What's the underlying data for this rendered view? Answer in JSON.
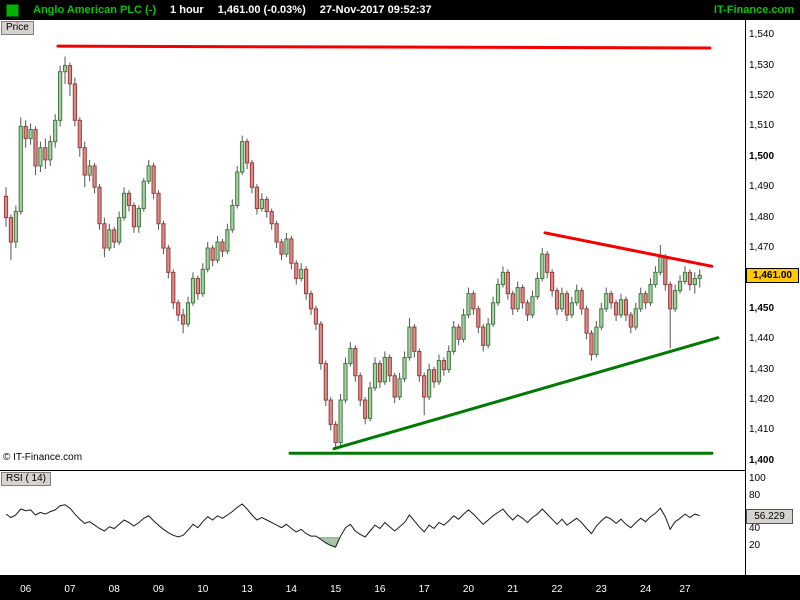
{
  "topbar": {
    "symbol": "Anglo American PLC (-)",
    "timeframe": "1 hour",
    "price_change": "1,461.00 (-0.03%)",
    "datetime": "27-Nov-2017 09:52:37",
    "brand": "IT-Finance.com"
  },
  "price_pane": {
    "label": "Price",
    "copyright": "© IT-Finance.com",
    "current_price_label": "1,461.00"
  },
  "rsi_pane": {
    "label": "RSI ( 14)",
    "value_label": "56.229"
  },
  "colors": {
    "up_fill": "#a9cfa4",
    "up_stroke": "#3f7a3f",
    "down_fill": "#d58e8c",
    "down_stroke": "#9e3a38",
    "wick": "#555555",
    "trend_red": "#f40000",
    "trend_green": "#007a00",
    "rsi_line": "#1a1a1a",
    "oversold_fill": "#a8c4a8",
    "accent_green": "#00c800",
    "price_flag_bg": "#ffc800"
  },
  "time_axis": {
    "labels": [
      "06",
      "07",
      "08",
      "09",
      "10",
      "13",
      "14",
      "15",
      "16",
      "17",
      "20",
      "21",
      "22",
      "23",
      "24",
      "27"
    ],
    "sessions": [
      9,
      9,
      9,
      9,
      9,
      9,
      9,
      9,
      9,
      9,
      9,
      9,
      9,
      9,
      9,
      7
    ]
  },
  "chart_data": [
    {
      "type": "candlestick",
      "title": "Anglo American PLC, 1 hour, 27-Nov-2017",
      "ylabel": "Price",
      "ylim": [
        1397,
        1545
      ],
      "last_price": 1461.0,
      "yticks": [
        {
          "v": 1540,
          "label": "1,540",
          "bold": false
        },
        {
          "v": 1530,
          "label": "1,530",
          "bold": false
        },
        {
          "v": 1520,
          "label": "1,520",
          "bold": false
        },
        {
          "v": 1510,
          "label": "1,510",
          "bold": false
        },
        {
          "v": 1500,
          "label": "1,500",
          "bold": true
        },
        {
          "v": 1490,
          "label": "1,490",
          "bold": false
        },
        {
          "v": 1480,
          "label": "1,480",
          "bold": false
        },
        {
          "v": 1470,
          "label": "1,470",
          "bold": false
        },
        {
          "v": 1450,
          "label": "1,450",
          "bold": true
        },
        {
          "v": 1440,
          "label": "1,440",
          "bold": false
        },
        {
          "v": 1430,
          "label": "1,430",
          "bold": false
        },
        {
          "v": 1420,
          "label": "1,420",
          "bold": false
        },
        {
          "v": 1410,
          "label": "1,410",
          "bold": false
        },
        {
          "v": 1400,
          "label": "1,400",
          "bold": true
        }
      ],
      "overlays": [
        {
          "name": "resistance-line",
          "color": "#f40000",
          "width": 3,
          "x1": 58,
          "p1": 1536.4,
          "x2": 710,
          "p2": 1535.8
        },
        {
          "name": "descending-trendline",
          "color": "#f40000",
          "width": 3,
          "x1": 545,
          "p1": 1475,
          "x2": 712,
          "p2": 1464
        },
        {
          "name": "ascending-trendline",
          "color": "#007a00",
          "width": 3,
          "x1": 334,
          "p1": 1404,
          "x2": 718,
          "p2": 1440.5
        },
        {
          "name": "support-line",
          "color": "#007a00",
          "width": 3,
          "x1": 290,
          "p1": 1402.5,
          "x2": 712,
          "p2": 1402.5
        }
      ],
      "candles": [
        [
          1487,
          1490,
          1477,
          1480
        ],
        [
          1480,
          1481,
          1466,
          1472
        ],
        [
          1472,
          1484,
          1470,
          1482
        ],
        [
          1482,
          1513,
          1481,
          1510
        ],
        [
          1510,
          1512,
          1503,
          1506
        ],
        [
          1506,
          1511,
          1504,
          1509
        ],
        [
          1509,
          1510,
          1494,
          1497
        ],
        [
          1497,
          1505,
          1495,
          1503
        ],
        [
          1503,
          1506,
          1496,
          1499
        ],
        [
          1499,
          1507,
          1497,
          1505
        ],
        [
          1505,
          1514,
          1503,
          1512
        ],
        [
          1512,
          1530,
          1510,
          1528
        ],
        [
          1528,
          1533,
          1524,
          1530
        ],
        [
          1530,
          1531,
          1520,
          1524
        ],
        [
          1524,
          1526,
          1510,
          1512
        ],
        [
          1512,
          1513,
          1500,
          1503
        ],
        [
          1503,
          1505,
          1490,
          1494
        ],
        [
          1494,
          1499,
          1492,
          1497
        ],
        [
          1497,
          1498,
          1488,
          1490
        ],
        [
          1490,
          1491,
          1476,
          1478
        ],
        [
          1478,
          1480,
          1467,
          1470
        ],
        [
          1470,
          1478,
          1469,
          1476
        ],
        [
          1476,
          1477,
          1470,
          1472
        ],
        [
          1472,
          1482,
          1471,
          1480
        ],
        [
          1480,
          1490,
          1479,
          1488
        ],
        [
          1488,
          1489,
          1482,
          1484
        ],
        [
          1484,
          1485,
          1475,
          1477
        ],
        [
          1477,
          1484,
          1475,
          1483
        ],
        [
          1483,
          1493,
          1482,
          1492
        ],
        [
          1492,
          1499,
          1491,
          1497
        ],
        [
          1497,
          1498,
          1486,
          1488
        ],
        [
          1488,
          1489,
          1476,
          1478
        ],
        [
          1478,
          1479,
          1468,
          1470
        ],
        [
          1470,
          1471,
          1460,
          1462
        ],
        [
          1462,
          1463,
          1450,
          1452
        ],
        [
          1452,
          1453,
          1446,
          1448
        ],
        [
          1448,
          1450,
          1442,
          1445
        ],
        [
          1445,
          1454,
          1444,
          1452
        ],
        [
          1452,
          1462,
          1451,
          1460
        ],
        [
          1460,
          1461,
          1453,
          1455
        ],
        [
          1455,
          1465,
          1454,
          1463
        ],
        [
          1463,
          1472,
          1462,
          1470
        ],
        [
          1470,
          1471,
          1464,
          1466
        ],
        [
          1466,
          1474,
          1465,
          1472
        ],
        [
          1472,
          1473,
          1467,
          1469
        ],
        [
          1469,
          1478,
          1468,
          1476
        ],
        [
          1476,
          1486,
          1475,
          1484
        ],
        [
          1484,
          1497,
          1483,
          1495
        ],
        [
          1495,
          1507,
          1494,
          1505
        ],
        [
          1505,
          1506,
          1496,
          1498
        ],
        [
          1498,
          1499,
          1488,
          1490
        ],
        [
          1490,
          1491,
          1481,
          1483
        ],
        [
          1483,
          1488,
          1482,
          1486
        ],
        [
          1486,
          1487,
          1480,
          1482
        ],
        [
          1482,
          1483,
          1476,
          1478
        ],
        [
          1478,
          1479,
          1470,
          1472
        ],
        [
          1472,
          1473,
          1466,
          1468
        ],
        [
          1468,
          1475,
          1467,
          1473
        ],
        [
          1473,
          1474,
          1463,
          1465
        ],
        [
          1465,
          1466,
          1458,
          1460
        ],
        [
          1460,
          1465,
          1459,
          1463
        ],
        [
          1463,
          1464,
          1453,
          1455
        ],
        [
          1455,
          1456,
          1448,
          1450
        ],
        [
          1450,
          1451,
          1443,
          1445
        ],
        [
          1445,
          1446,
          1430,
          1432
        ],
        [
          1432,
          1433,
          1418,
          1420
        ],
        [
          1420,
          1421,
          1410,
          1412
        ],
        [
          1412,
          1413,
          1404,
          1406
        ],
        [
          1406,
          1422,
          1405,
          1420
        ],
        [
          1420,
          1434,
          1419,
          1432
        ],
        [
          1432,
          1439,
          1431,
          1437
        ],
        [
          1437,
          1438,
          1426,
          1428
        ],
        [
          1428,
          1429,
          1418,
          1420
        ],
        [
          1420,
          1421,
          1412,
          1414
        ],
        [
          1414,
          1426,
          1413,
          1424
        ],
        [
          1424,
          1434,
          1423,
          1432
        ],
        [
          1432,
          1433,
          1424,
          1426
        ],
        [
          1426,
          1436,
          1425,
          1434
        ],
        [
          1434,
          1435,
          1426,
          1428
        ],
        [
          1428,
          1429,
          1419,
          1421
        ],
        [
          1421,
          1429,
          1420,
          1427
        ],
        [
          1427,
          1436,
          1426,
          1434
        ],
        [
          1434,
          1447,
          1433,
          1444
        ],
        [
          1444,
          1445,
          1434,
          1436
        ],
        [
          1436,
          1437,
          1426,
          1428
        ],
        [
          1428,
          1429,
          1415,
          1421
        ],
        [
          1421,
          1432,
          1420,
          1430
        ],
        [
          1430,
          1431,
          1424,
          1426
        ],
        [
          1426,
          1435,
          1425,
          1433
        ],
        [
          1433,
          1434,
          1428,
          1430
        ],
        [
          1430,
          1438,
          1429,
          1436
        ],
        [
          1436,
          1446,
          1435,
          1444
        ],
        [
          1444,
          1445,
          1438,
          1440
        ],
        [
          1440,
          1450,
          1439,
          1448
        ],
        [
          1448,
          1457,
          1447,
          1455
        ],
        [
          1455,
          1456,
          1448,
          1450
        ],
        [
          1450,
          1451,
          1442,
          1444
        ],
        [
          1444,
          1445,
          1436,
          1438
        ],
        [
          1438,
          1447,
          1437,
          1445
        ],
        [
          1445,
          1454,
          1444,
          1452
        ],
        [
          1452,
          1460,
          1451,
          1458
        ],
        [
          1458,
          1464,
          1457,
          1462
        ],
        [
          1462,
          1463,
          1453,
          1455
        ],
        [
          1455,
          1456,
          1448,
          1450
        ],
        [
          1450,
          1459,
          1449,
          1457
        ],
        [
          1457,
          1458,
          1450,
          1452
        ],
        [
          1452,
          1453,
          1446,
          1448
        ],
        [
          1448,
          1456,
          1447,
          1454
        ],
        [
          1454,
          1462,
          1453,
          1460
        ],
        [
          1460,
          1470,
          1459,
          1468
        ],
        [
          1468,
          1469,
          1460,
          1462
        ],
        [
          1462,
          1463,
          1454,
          1456
        ],
        [
          1456,
          1457,
          1448,
          1450
        ],
        [
          1450,
          1457,
          1449,
          1455
        ],
        [
          1455,
          1456,
          1446,
          1448
        ],
        [
          1448,
          1454,
          1447,
          1452
        ],
        [
          1452,
          1458,
          1451,
          1456
        ],
        [
          1456,
          1457,
          1448,
          1450
        ],
        [
          1450,
          1451,
          1440,
          1442
        ],
        [
          1442,
          1443,
          1433,
          1435
        ],
        [
          1435,
          1446,
          1434,
          1444
        ],
        [
          1444,
          1452,
          1443,
          1450
        ],
        [
          1450,
          1457,
          1449,
          1455
        ],
        [
          1455,
          1456,
          1450,
          1452
        ],
        [
          1452,
          1453,
          1446,
          1448
        ],
        [
          1448,
          1455,
          1447,
          1453
        ],
        [
          1453,
          1454,
          1446,
          1448
        ],
        [
          1448,
          1449,
          1442,
          1444
        ],
        [
          1444,
          1452,
          1443,
          1450
        ],
        [
          1450,
          1457,
          1449,
          1455
        ],
        [
          1455,
          1456,
          1450,
          1452
        ],
        [
          1452,
          1460,
          1451,
          1458
        ],
        [
          1458,
          1464,
          1457,
          1462
        ],
        [
          1462,
          1471,
          1461,
          1467
        ],
        [
          1467,
          1468,
          1456,
          1458
        ],
        [
          1458,
          1459,
          1437,
          1450
        ],
        [
          1450,
          1458,
          1449,
          1456
        ],
        [
          1456,
          1461,
          1455,
          1459
        ],
        [
          1459,
          1464,
          1458,
          1462
        ],
        [
          1462,
          1463,
          1456,
          1458
        ],
        [
          1458,
          1462,
          1455,
          1460
        ],
        [
          1460,
          1463,
          1457,
          1461
        ]
      ]
    },
    {
      "type": "line",
      "title": "RSI ( 14)",
      "ylim": [
        -14,
        109
      ],
      "yticks": [
        {
          "v": 100,
          "label": "100"
        },
        {
          "v": 80,
          "label": "80"
        },
        {
          "v": 40,
          "label": "40"
        },
        {
          "v": 20,
          "label": "20"
        }
      ],
      "oversold_threshold": 30,
      "last_value": 56.229,
      "values": [
        58,
        54,
        57,
        64,
        62,
        63,
        57,
        60,
        58,
        61,
        63,
        68,
        69,
        65,
        58,
        52,
        47,
        49,
        45,
        41,
        38,
        43,
        41,
        46,
        51,
        48,
        44,
        48,
        53,
        56,
        50,
        45,
        40,
        36,
        33,
        31,
        33,
        39,
        46,
        42,
        49,
        55,
        51,
        56,
        53,
        57,
        61,
        66,
        70,
        64,
        57,
        51,
        54,
        51,
        48,
        45,
        42,
        46,
        41,
        37,
        40,
        35,
        32,
        32,
        28,
        24,
        21,
        19,
        32,
        42,
        46,
        38,
        34,
        31,
        38,
        45,
        41,
        48,
        43,
        38,
        43,
        48,
        57,
        50,
        43,
        37,
        45,
        41,
        48,
        45,
        50,
        56,
        52,
        58,
        63,
        58,
        52,
        46,
        51,
        56,
        60,
        64,
        57,
        51,
        57,
        53,
        48,
        54,
        58,
        64,
        58,
        52,
        46,
        52,
        45,
        49,
        53,
        48,
        41,
        35,
        44,
        50,
        55,
        52,
        47,
        52,
        46,
        42,
        48,
        53,
        49,
        55,
        59,
        65,
        55,
        40,
        49,
        53,
        58,
        54,
        58,
        56.229
      ]
    }
  ]
}
